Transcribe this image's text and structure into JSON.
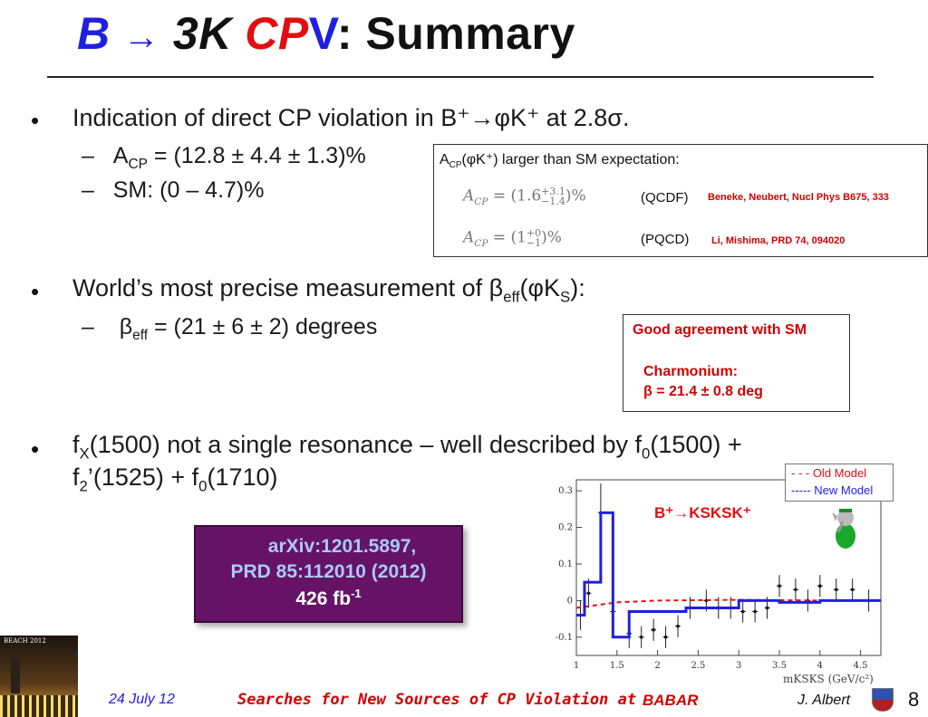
{
  "title": {
    "b": "B",
    "arrow": "→",
    "threek": "3K",
    "cp": "CP",
    "v": "V",
    "colon": ":",
    "summary": "Summary"
  },
  "bullets": {
    "b1": "Indication of direct CP violation in B⁺→φK⁺ at 2.8σ.",
    "b1_sub1": "A",
    "b1_sub1_sub": "CP",
    "b1_sub1_rest": " = (12.8 ± 4.4 ± 1.3)%",
    "b1_sub2": "SM:  (0 – 4.7)%",
    "b2_pre": "World’s most precise measurement of β",
    "b2_sub": "eff",
    "b2_mid": "(φK",
    "b2_sub2": "S",
    "b2_end": "):",
    "b2_sub1_pre": "β",
    "b2_sub1_sub": "eff",
    "b2_sub1_rest": " = (21 ± 6 ± 2) degrees",
    "b3_l1a": "f",
    "b3_l1a_sub": "X",
    "b3_l1b": "(1500) not a single resonance – well described by f",
    "b3_l1b_sub": "0",
    "b3_l1c": "(1500) +",
    "b3_l2a": "f",
    "b3_l2a_sub": "2",
    "b3_l2b": "’(1525) + f",
    "b3_l2b_sub": "0",
    "b3_l2c": "(1710)",
    "dash": "–",
    "dot": "•"
  },
  "acp_box": {
    "heading_a": "A",
    "heading_sub": "CP",
    "heading_rest": "(φK⁺) larger than SM expectation:",
    "row1_math": "A_CP = (1.6 +3.1 −1.4)%",
    "row1_label": "(QCDF)",
    "row1_ref": "Beneke, Neubert, Nucl Phys B675,  333",
    "row2_math": "A_CP = (1 +0 −1)%",
    "row2_label": "(PQCD)",
    "row2_ref": "Li, Mishima,  PRD 74, 094020"
  },
  "sm_box": {
    "line1": "Good agreement with SM",
    "line2": "Charmonium:",
    "line3": "β = 21.4 ± 0.8 deg"
  },
  "arxiv_box": {
    "line1": "arXiv:1201.5897,",
    "line2": "PRD 85:112010 (2012)",
    "line3": "426 fb",
    "line3_sup": "-1"
  },
  "footer": {
    "date": "24 July 12",
    "searches": "Searches for New Sources of CP Violation at",
    "babar": "BABAR",
    "author": "J. Albert",
    "page": "8",
    "thumb_label": "BEACH 2012"
  },
  "colors": {
    "blue": "#1f1fe0",
    "red": "#e01010",
    "purple": "#661366"
  },
  "chart_data": {
    "type": "line",
    "title": "B⁺→KSKSK⁺",
    "xlabel": "mKSKS (GeV/c²)",
    "ylabel": "",
    "xlim": [
      1.0,
      4.75
    ],
    "ylim": [
      -0.15,
      0.33
    ],
    "x_ticks": [
      "1",
      "1.5",
      "2",
      "2.5",
      "3",
      "3.5",
      "4",
      "4.5"
    ],
    "y_ticks": [
      "-0.1",
      "0",
      "0.1",
      "0.2",
      "0.3"
    ],
    "legend": [
      {
        "name": "- - -  Old Model",
        "color": "#e01010"
      },
      {
        "name": "----- New Model",
        "color": "#1f1fe0"
      }
    ],
    "legend_position": "top-right",
    "new_model_steps": [
      [
        1.0,
        -0.04
      ],
      [
        1.1,
        0.05
      ],
      [
        1.3,
        0.24
      ],
      [
        1.45,
        -0.1
      ],
      [
        1.65,
        -0.03
      ],
      [
        2.35,
        -0.02
      ],
      [
        3.0,
        0.0
      ],
      [
        3.5,
        -0.005
      ],
      [
        4.0,
        0.0
      ],
      [
        4.75,
        0.0
      ]
    ],
    "old_model": [
      [
        1.0,
        -0.02
      ],
      [
        1.5,
        -0.005
      ],
      [
        2.0,
        0.0
      ],
      [
        3.0,
        0.002
      ],
      [
        4.0,
        0.0
      ],
      [
        4.75,
        0.0
      ]
    ],
    "points": [
      {
        "x": 1.05,
        "y": -0.04,
        "e": 0.04
      },
      {
        "x": 1.15,
        "y": 0.02,
        "e": 0.04
      },
      {
        "x": 1.3,
        "y": 0.24,
        "e": 0.08
      },
      {
        "x": 1.45,
        "y": -0.03,
        "e": 0.06
      },
      {
        "x": 1.65,
        "y": -0.09,
        "e": 0.04
      },
      {
        "x": 1.8,
        "y": -0.1,
        "e": 0.03
      },
      {
        "x": 1.95,
        "y": -0.08,
        "e": 0.03
      },
      {
        "x": 2.1,
        "y": -0.1,
        "e": 0.03
      },
      {
        "x": 2.25,
        "y": -0.07,
        "e": 0.03
      },
      {
        "x": 2.4,
        "y": -0.02,
        "e": 0.03
      },
      {
        "x": 2.6,
        "y": 0.0,
        "e": 0.03
      },
      {
        "x": 2.75,
        "y": -0.02,
        "e": 0.03
      },
      {
        "x": 2.9,
        "y": -0.02,
        "e": 0.03
      },
      {
        "x": 3.05,
        "y": -0.03,
        "e": 0.03
      },
      {
        "x": 3.2,
        "y": -0.03,
        "e": 0.03
      },
      {
        "x": 3.35,
        "y": -0.02,
        "e": 0.03
      },
      {
        "x": 3.5,
        "y": 0.04,
        "e": 0.03
      },
      {
        "x": 3.7,
        "y": 0.03,
        "e": 0.03
      },
      {
        "x": 3.85,
        "y": 0.0,
        "e": 0.03
      },
      {
        "x": 4.0,
        "y": 0.04,
        "e": 0.03
      },
      {
        "x": 4.2,
        "y": 0.03,
        "e": 0.03
      },
      {
        "x": 4.4,
        "y": 0.03,
        "e": 0.03
      },
      {
        "x": 4.6,
        "y": 0.0,
        "e": 0.03
      }
    ]
  }
}
